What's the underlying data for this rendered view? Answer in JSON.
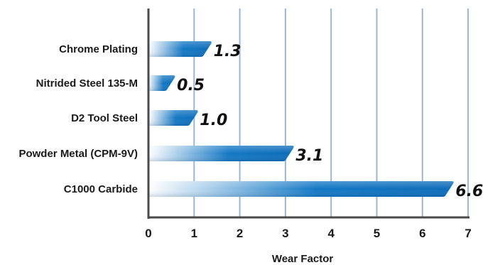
{
  "chart_data": {
    "type": "bar",
    "orientation": "horizontal",
    "categories": [
      "Chrome Plating",
      "Nitrided Steel 135-M",
      "D2 Tool Steel",
      "Powder Metal (CPM-9V)",
      "C1000 Carbide"
    ],
    "values": [
      1.3,
      0.5,
      1.0,
      3.1,
      6.6
    ],
    "value_labels": [
      "1.3",
      "0.5",
      "1.0",
      "3.1",
      "6.6"
    ],
    "xlabel": "Wear Factor",
    "xlim": [
      0,
      7
    ],
    "xticks": [
      "0",
      "1",
      "2",
      "3",
      "4",
      "5",
      "6",
      "7"
    ],
    "grid": true,
    "colors": {
      "bar": "#1273c1",
      "bar_fade": "#ffffff",
      "grid": "#9ab5d8",
      "axis": "#4a4a4a"
    }
  }
}
